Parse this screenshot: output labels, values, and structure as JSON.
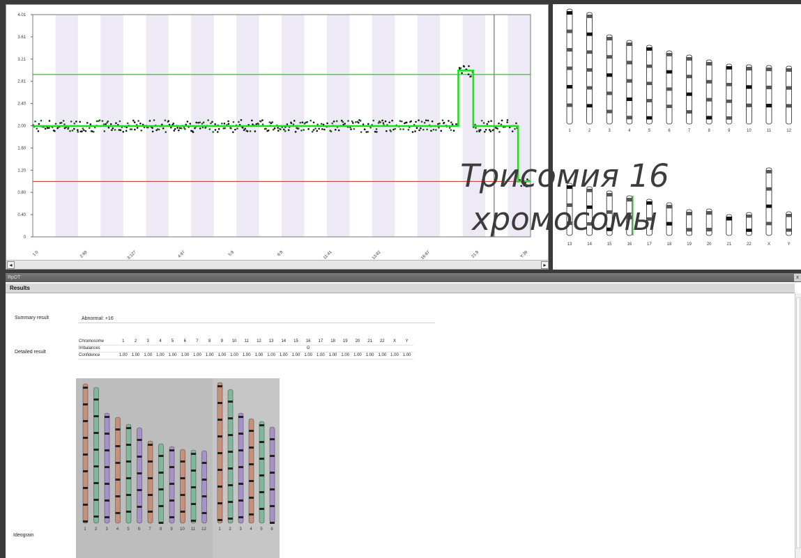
{
  "chart_data": {
    "type": "line",
    "y_ticks": [
      "4.01",
      "3.61",
      "3.21",
      "2.81",
      "2.40",
      "2.00",
      "1.60",
      "1.20",
      "0.80",
      "0.40",
      "0"
    ],
    "x_ticks": [
      "1:0",
      "2:69",
      "3:127",
      "4:67",
      "5:8",
      "6:8",
      "11:41",
      "13:82",
      "16:67",
      "21:9",
      "Y:39"
    ],
    "ylim": [
      0,
      4.01
    ],
    "reference_lines": [
      {
        "color": "#33aa33",
        "y": 2.93
      },
      {
        "color": "#cc4444",
        "y": 1.0
      }
    ],
    "series": [
      {
        "segments": [
          {
            "x_start": 0,
            "x_end": 0.855,
            "y": 2.0
          },
          {
            "x_start": 0.855,
            "x_end": 0.885,
            "y": 3.0
          },
          {
            "x_start": 0.885,
            "x_end": 0.975,
            "y": 2.0
          },
          {
            "x_start": 0.975,
            "x_end": 1.0,
            "y": 1.0
          }
        ]
      }
    ],
    "grid": true
  },
  "ideogram": {
    "row1_labels": [
      "1",
      "2",
      "3",
      "4",
      "5",
      "6",
      "7",
      "8",
      "9",
      "10",
      "11",
      "12"
    ],
    "row2_labels": [
      "13",
      "14",
      "15",
      "16",
      "17",
      "18",
      "19",
      "20",
      "21",
      "22",
      "X",
      "Y"
    ],
    "highlight_chromosome": "16",
    "highlight_color": "#33cc33"
  },
  "results": {
    "window_title": "RpDT",
    "close_label": "x",
    "header": "Results",
    "summary_label": "Summary result",
    "summary_value": "Abnormal: +16",
    "detailed_label": "Detailed result",
    "ideogram_label": "Ideogram",
    "table": {
      "row_labels": [
        "Chromosome",
        "Imbalances",
        "Confidence"
      ],
      "chromosomes": [
        "1",
        "2",
        "3",
        "4",
        "5",
        "6",
        "7",
        "8",
        "9",
        "10",
        "11",
        "12",
        "13",
        "14",
        "15",
        "16",
        "17",
        "18",
        "19",
        "20",
        "21",
        "22",
        "X",
        "Y"
      ],
      "imbalances": [
        "",
        "",
        "",
        "",
        "",
        "",
        "",
        "",
        "",
        "",
        "",
        "",
        "",
        "",
        "",
        "G",
        "",
        "",
        "",
        "",
        "",
        "",
        "",
        ""
      ],
      "confidence": [
        "1.00",
        "1.00",
        "1.00",
        "1.00",
        "1.00",
        "1.00",
        "1.00",
        "1.00",
        "1.00",
        "1.00",
        "1.00",
        "1.00",
        "1.00",
        "1.00",
        "1.00",
        "1.00",
        "1.00",
        "1.00",
        "1.00",
        "1.00",
        "1.00",
        "1.00",
        "1.00",
        "1.00"
      ]
    },
    "karyotype_labels_left": [
      "1",
      "2",
      "3",
      "4",
      "5",
      "6",
      "7",
      "8",
      "9",
      "10",
      "11",
      "12"
    ],
    "karyotype_labels_right": [
      "1",
      "2",
      "3",
      "4",
      "5",
      "6"
    ]
  },
  "caption": {
    "line1": "Трисомия 16",
    "line2": "хромосомы"
  },
  "scroll": {
    "left_arrow": "◂",
    "right_arrow": "▸"
  }
}
